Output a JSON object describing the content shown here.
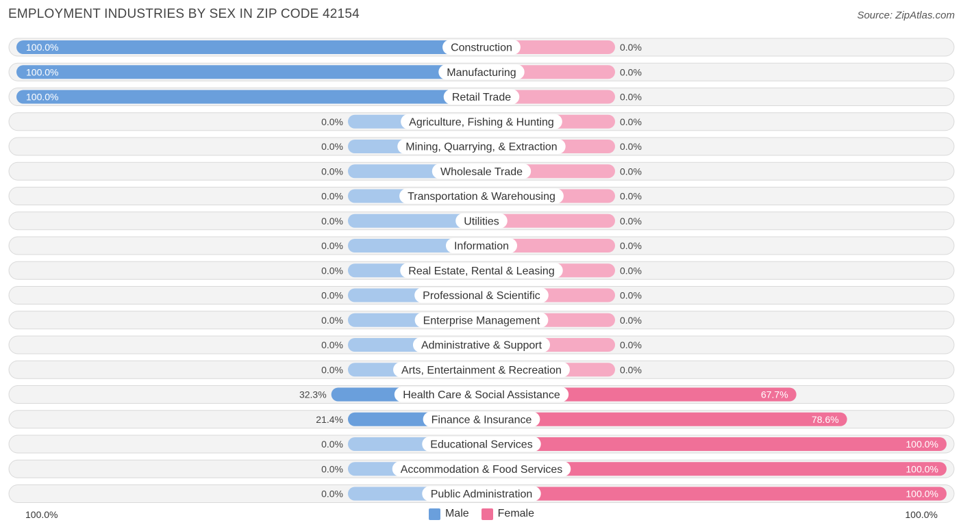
{
  "header": {
    "title": "EMPLOYMENT INDUSTRIES BY SEX IN ZIP CODE 42154",
    "source": "Source: ZipAtlas.com"
  },
  "legend": {
    "male_label": "Male",
    "female_label": "Female",
    "male_color": "#6a9fdc",
    "female_color": "#f07098"
  },
  "axis": {
    "left_label": "100.0%",
    "right_label": "100.0%"
  },
  "chart_data": {
    "type": "bar",
    "orientation": "horizontal-diverging",
    "title": "EMPLOYMENT INDUSTRIES BY SEX IN ZIP CODE 42154",
    "xlim": [
      -100,
      100
    ],
    "categories": [
      "Construction",
      "Manufacturing",
      "Retail Trade",
      "Agriculture, Fishing & Hunting",
      "Mining, Quarrying, & Extraction",
      "Wholesale Trade",
      "Transportation & Warehousing",
      "Utilities",
      "Information",
      "Real Estate, Rental & Leasing",
      "Professional & Scientific",
      "Enterprise Management",
      "Administrative & Support",
      "Arts, Entertainment & Recreation",
      "Health Care & Social Assistance",
      "Finance & Insurance",
      "Educational Services",
      "Accommodation & Food Services",
      "Public Administration"
    ],
    "series": [
      {
        "name": "Male",
        "values": [
          100.0,
          100.0,
          100.0,
          0.0,
          0.0,
          0.0,
          0.0,
          0.0,
          0.0,
          0.0,
          0.0,
          0.0,
          0.0,
          0.0,
          32.3,
          21.4,
          0.0,
          0.0,
          0.0
        ],
        "labels": [
          "100.0%",
          "100.0%",
          "100.0%",
          "0.0%",
          "0.0%",
          "0.0%",
          "0.0%",
          "0.0%",
          "0.0%",
          "0.0%",
          "0.0%",
          "0.0%",
          "0.0%",
          "0.0%",
          "32.3%",
          "21.4%",
          "0.0%",
          "0.0%",
          "0.0%"
        ]
      },
      {
        "name": "Female",
        "values": [
          0.0,
          0.0,
          0.0,
          0.0,
          0.0,
          0.0,
          0.0,
          0.0,
          0.0,
          0.0,
          0.0,
          0.0,
          0.0,
          0.0,
          67.7,
          78.6,
          100.0,
          100.0,
          100.0
        ],
        "labels": [
          "0.0%",
          "0.0%",
          "0.0%",
          "0.0%",
          "0.0%",
          "0.0%",
          "0.0%",
          "0.0%",
          "0.0%",
          "0.0%",
          "0.0%",
          "0.0%",
          "0.0%",
          "0.0%",
          "67.7%",
          "78.6%",
          "100.0%",
          "100.0%",
          "100.0%"
        ]
      }
    ]
  }
}
